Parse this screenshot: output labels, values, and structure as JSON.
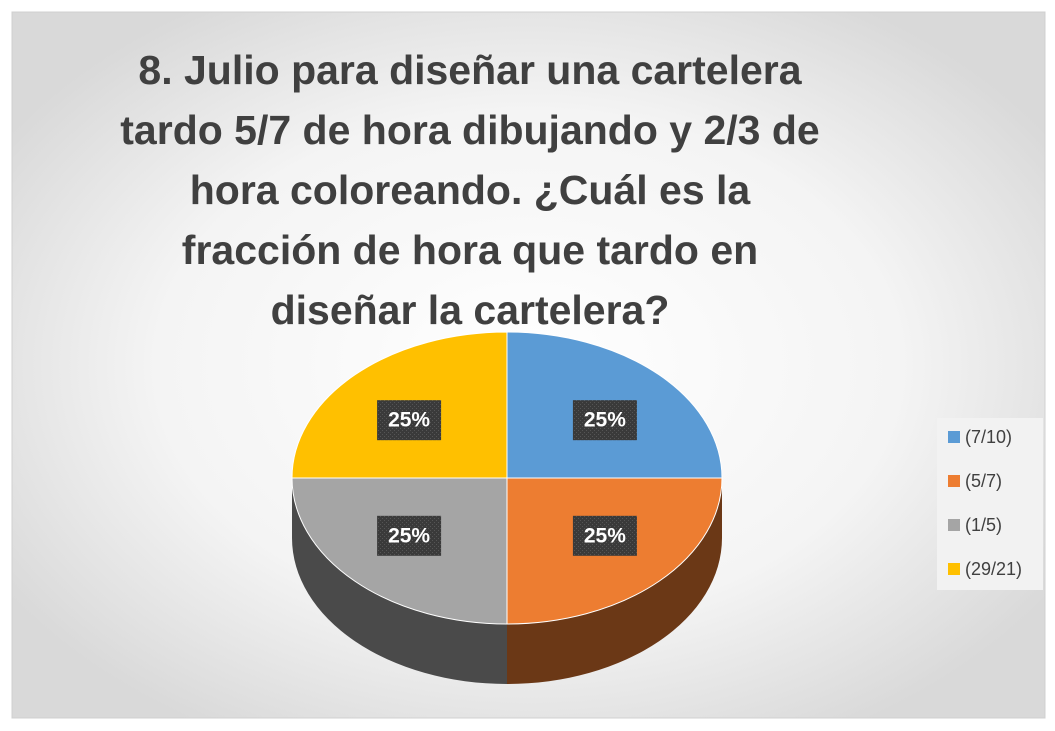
{
  "chart_data": {
    "type": "pie",
    "title": "8. Julio para diseñar una cartelera tardo 5/7 de hora dibujando y 2/3 de hora coloreando. ¿Cuál es la fracción de hora que tardo en diseñar la cartelera?",
    "categories": [
      "(7/10)",
      "(5/7)",
      "(1/5)",
      "(29/21)"
    ],
    "values": [
      25,
      25,
      25,
      25
    ],
    "value_labels": [
      "25%",
      "25%",
      "25%",
      "25%"
    ],
    "colors": [
      "#5b9bd5",
      "#ed7d31",
      "#a5a5a5",
      "#ffc000"
    ],
    "legend": "right"
  }
}
